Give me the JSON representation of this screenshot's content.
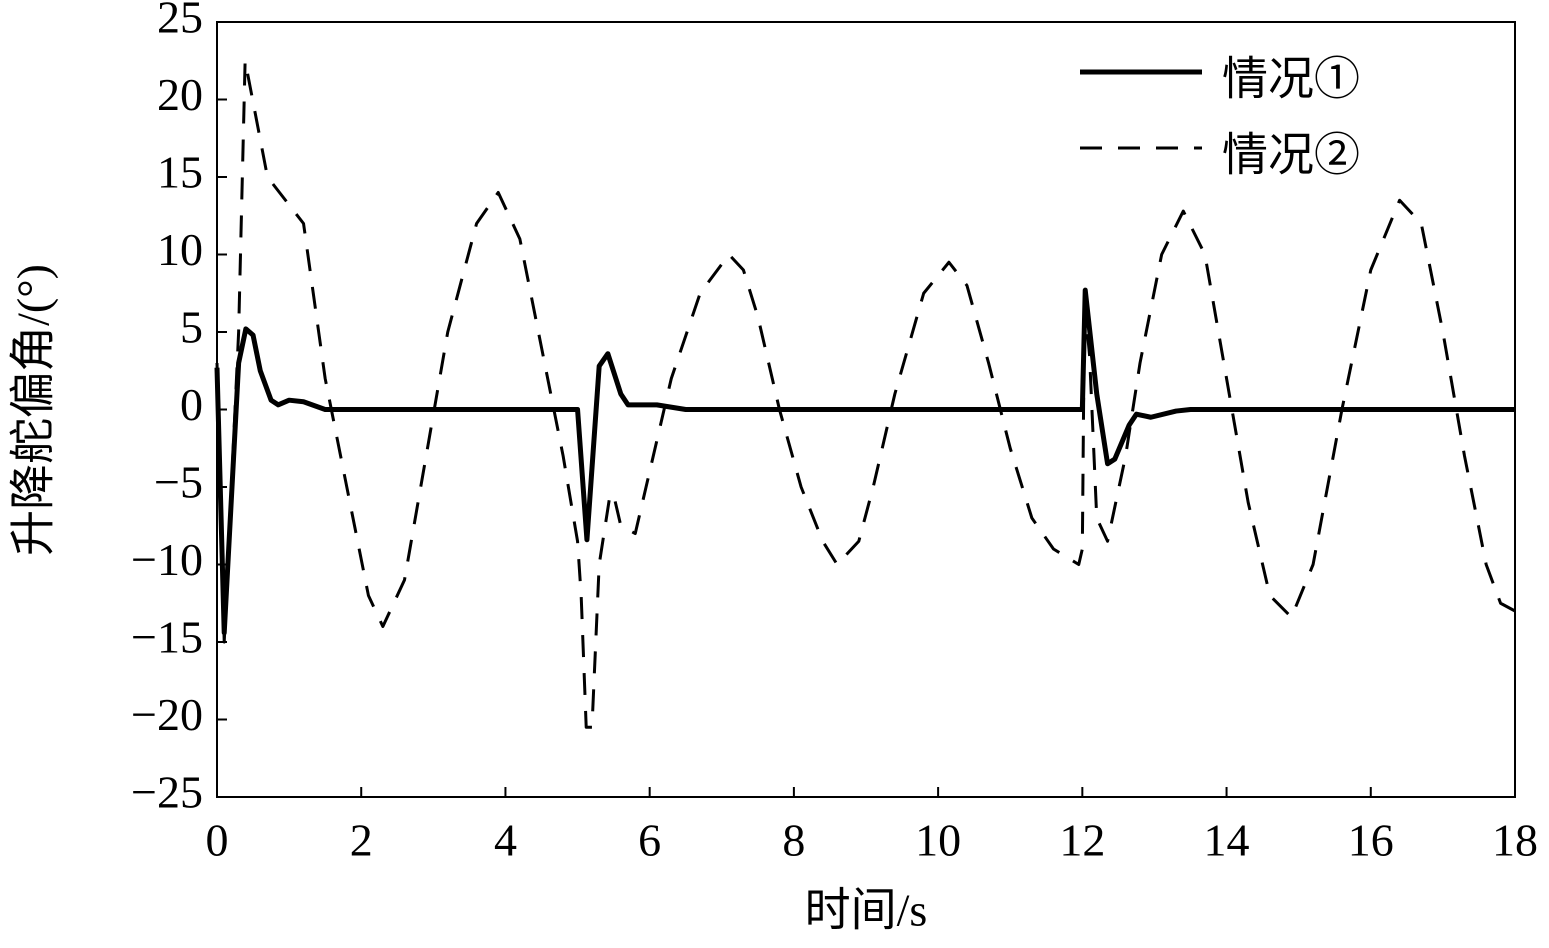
{
  "chart_data": {
    "type": "line",
    "xlabel": "时间/s",
    "ylabel": "升降舵偏角/(°)",
    "xlim": [
      0,
      18
    ],
    "xticks": [
      0,
      2,
      4,
      6,
      8,
      10,
      12,
      14,
      16,
      18
    ],
    "ylim": [
      -25,
      25
    ],
    "yticks": [
      {
        "value": -25,
        "label": "−25"
      },
      {
        "value": -20,
        "label": "−20"
      },
      {
        "value": -15,
        "label": "−15"
      },
      {
        "value": -10,
        "label": "−10"
      },
      {
        "value": -5,
        "label": "−5"
      },
      0,
      5,
      10,
      15,
      20,
      25
    ],
    "legend": "upper right",
    "grid": false,
    "series": [
      {
        "name": "情况①",
        "color": "#000000",
        "line_style": "solid",
        "x": [
          0,
          0.1,
          0.3,
          0.4,
          0.5,
          0.6,
          0.75,
          0.85,
          1.0,
          1.2,
          1.5,
          5.0,
          5.13,
          5.3,
          5.42,
          5.6,
          5.7,
          6.1,
          6.5,
          12.0,
          12.04,
          12.2,
          12.35,
          12.45,
          12.65,
          12.75,
          12.95,
          13.3,
          13.5,
          18
        ],
        "values": [
          2.7,
          -14.4,
          3,
          5.2,
          4.8,
          2.5,
          0.6,
          0.3,
          0.6,
          0.5,
          0,
          0,
          -8.4,
          2.8,
          3.6,
          1,
          0.3,
          0.3,
          0,
          0,
          7.7,
          1,
          -3.5,
          -3.2,
          -1,
          -0.3,
          -0.5,
          -0.1,
          0,
          0
        ]
      },
      {
        "name": "情况②",
        "color": "#000000",
        "line_style": "dashed",
        "x": [
          0,
          0.1,
          0.3,
          0.39,
          0.7,
          1.2,
          1.5,
          1.8,
          2.1,
          2.3,
          2.6,
          2.9,
          3.2,
          3.6,
          3.9,
          4.2,
          4.5,
          4.8,
          5.0,
          5.05,
          5.12,
          5.2,
          5.3,
          5.45,
          5.5,
          5.6,
          5.8,
          6.0,
          6.3,
          6.7,
          7.1,
          7.3,
          7.5,
          7.8,
          8.1,
          8.4,
          8.6,
          8.9,
          9.1,
          9.4,
          9.8,
          10.15,
          10.4,
          10.7,
          11.0,
          11.3,
          11.6,
          11.95,
          12.0,
          12.03,
          12.1,
          12.2,
          12.35,
          12.6,
          12.8,
          13.1,
          13.4,
          13.7,
          14.0,
          14.3,
          14.6,
          14.9,
          15.2,
          15.6,
          16.0,
          16.4,
          16.7,
          17.0,
          17.3,
          17.6,
          17.8,
          18.0
        ],
        "values": [
          3,
          -15,
          5,
          22.5,
          15,
          12,
          2,
          -5,
          -12,
          -14,
          -11,
          -3,
          5,
          12,
          14,
          11,
          4,
          -3,
          -8.5,
          -12,
          -20.5,
          -20.5,
          -10,
          -5.5,
          -5.5,
          -7.5,
          -8,
          -4,
          2,
          7.5,
          10,
          9,
          6,
          0,
          -5,
          -8.5,
          -10,
          -8.5,
          -5,
          1,
          7.5,
          9.5,
          8,
          3,
          -2.5,
          -7,
          -9,
          -10,
          -9,
          7,
          3.5,
          -7,
          -8.5,
          -3,
          3,
          10,
          12.8,
          10,
          2,
          -6,
          -12,
          -13.4,
          -10,
          0,
          9,
          13.5,
          12,
          5,
          -3,
          -10,
          -12.5,
          -13
        ]
      }
    ]
  }
}
